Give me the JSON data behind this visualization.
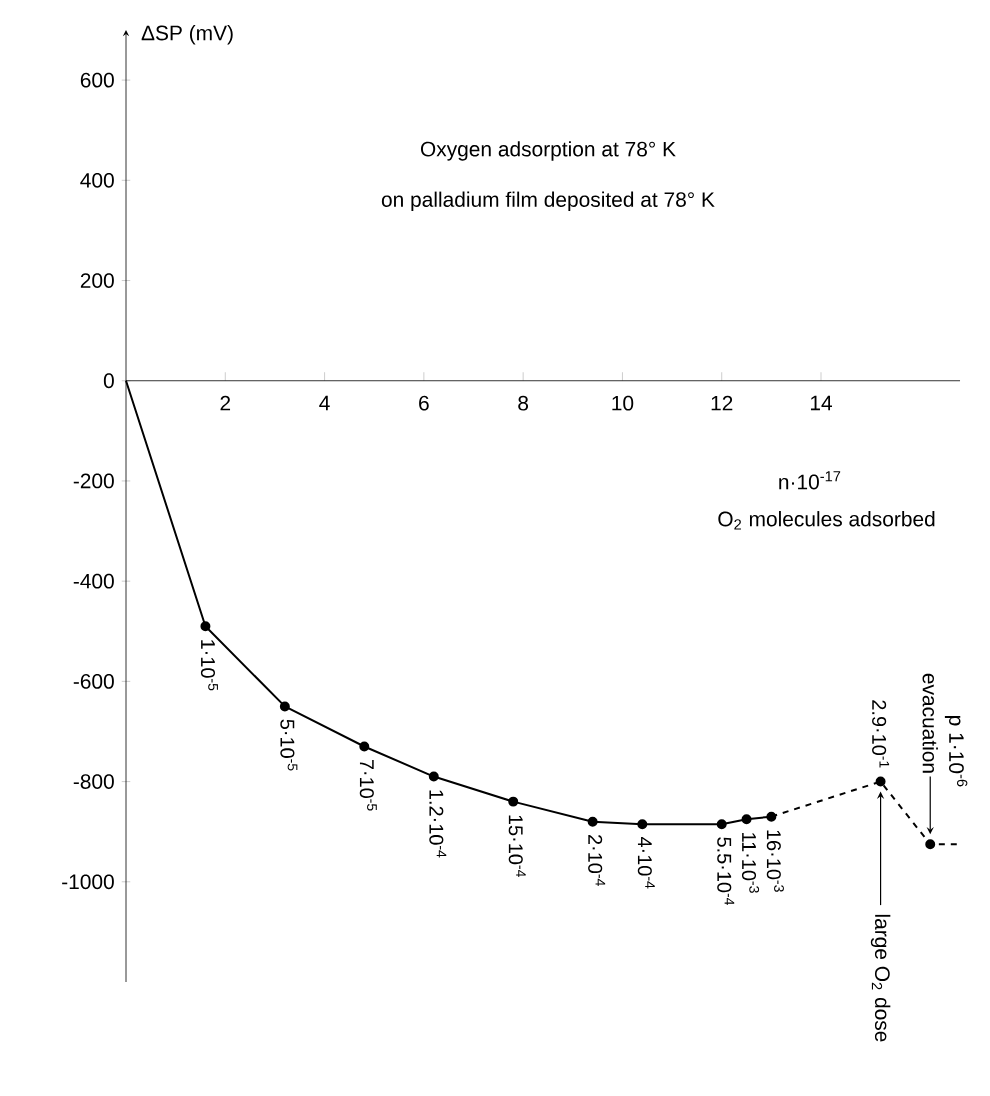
{
  "chart_data": {
    "type": "line",
    "title": "Oxygen adsorption at 78° K",
    "subtitle": "on palladium film deposited at 78° K",
    "xlabel": "O$_{2}$ molecules adsorbed",
    "ylabel": "ΔSP (mV)",
    "xlim": [
      0,
      16.8
    ],
    "ylim": [
      -1200,
      700
    ],
    "xticks": [
      2,
      4,
      6,
      8,
      10,
      12,
      14
    ],
    "yticks": [
      -1000,
      -800,
      -600,
      -400,
      -200,
      0,
      200,
      400,
      600
    ],
    "grid": false,
    "series": [
      {
        "line_style": "solid",
        "marker": "none",
        "color": "#000000",
        "x": [
          0,
          1.6,
          3.2,
          4.8,
          6.2,
          7.8,
          9.4,
          10.4,
          12.0,
          12.5,
          13.0
        ],
        "values": [
          0,
          -490,
          -650,
          -730,
          -790,
          -840,
          -880,
          -885,
          -885,
          -875,
          -870
        ]
      },
      {
        "line_style": "dashed",
        "marker": "none",
        "color": "#000000",
        "x": [
          13.0,
          15.2,
          16.2,
          16.8
        ],
        "values": [
          -870,
          -800,
          -925,
          -925
        ]
      },
      {
        "type": "scatter",
        "marker": "circle",
        "color": "#000000",
        "x": [
          1.6,
          3.2,
          4.8,
          6.2,
          7.8,
          9.4,
          10.4,
          12.0,
          12.5,
          13.0,
          15.2,
          16.2
        ],
        "values": [
          -490,
          -650,
          -730,
          -790,
          -840,
          -880,
          -885,
          -885,
          -875,
          -870,
          -800,
          -925
        ]
      }
    ],
    "annotations": [
      "n·10$^{-17}$",
      {
        "text": "1·10$^{-5}$",
        "x": 1.6,
        "y": -490
      },
      {
        "text": "5·10$^{-5}$",
        "x": 3.2,
        "y": -650
      },
      {
        "text": "7·10$^{-5}$",
        "x": 4.8,
        "y": -730
      },
      {
        "text": "1.2·10$^{-4}$",
        "x": 6.2,
        "y": -790
      },
      {
        "text": "15·10$^{-4}$",
        "x": 7.8,
        "y": -840
      },
      {
        "text": "2·10$^{-4}$",
        "x": 9.4,
        "y": -880
      },
      {
        "text": "4·10$^{-4}$",
        "x": 10.4,
        "y": -885
      },
      {
        "text": "5.5·10$^{-4}$",
        "x": 12.0,
        "y": -885
      },
      {
        "text": "11·10$^{-3}$",
        "x": 12.5,
        "y": -875
      },
      {
        "text": "16·10$^{-3}$",
        "x": 13.0,
        "y": -870
      },
      {
        "text": "2.9·10$^{-1}$",
        "x": 15.2,
        "y": -800
      },
      {
        "text": "large O$_{2}$ dose",
        "x": 15.2,
        "y": -800
      },
      {
        "text": "evacuation",
        "x": 16.2,
        "y": -925
      },
      {
        "text": "p 1·10$^{-6}$",
        "x": 16.2,
        "y": -925
      }
    ]
  }
}
